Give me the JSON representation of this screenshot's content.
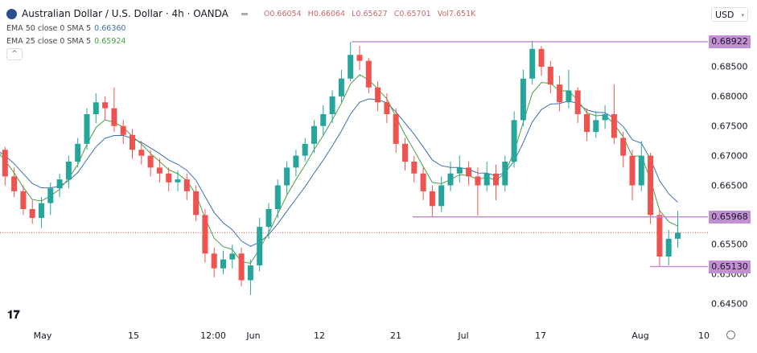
{
  "header": {
    "title": "Australian Dollar / U.S. Dollar · 4h · OANDA",
    "open": "O0.66054",
    "high": "H0.66064",
    "low": "L0.65627",
    "close": "C0.65701",
    "volume": "Vol7.651K"
  },
  "indicators": [
    {
      "label": "EMA 50 close 0 SMA 5",
      "value": "0.66360",
      "color": "#3a6fb0"
    },
    {
      "label": "EMA 25 close 0 SMA 5",
      "value": "0.65924",
      "color": "#46a046"
    }
  ],
  "currency": "USD",
  "colors": {
    "up": "#26a69a",
    "down": "#ef5350",
    "level": "#c38fd3",
    "ema50": "#3a6fb0",
    "ema25": "#46a046"
  },
  "chart_data": {
    "type": "candlestick",
    "title": "Australian Dollar / U.S. Dollar · 4h · OANDA",
    "ylim": [
      0.6425,
      0.6915
    ],
    "y_ticks": [
      "0.68500",
      "0.68000",
      "0.67500",
      "0.67000",
      "0.66500",
      "0.65500",
      "0.65000",
      "0.64500"
    ],
    "x_ticks": [
      "May",
      "15",
      "12:00",
      "Jun",
      "12",
      "21",
      "Jul",
      "17",
      "Aug",
      "10"
    ],
    "levels": [
      {
        "value": 0.68922,
        "label": "0.68922"
      },
      {
        "value": 0.65968,
        "label": "0.65968"
      },
      {
        "value": 0.6513,
        "label": "0.65130"
      }
    ],
    "last_price": 0.65701,
    "candles": [
      [
        "04-24",
        0.672,
        0.673,
        0.6695,
        0.671
      ],
      [
        "04-25",
        0.671,
        0.6715,
        0.665,
        0.6665
      ],
      [
        "04-26",
        0.6665,
        0.668,
        0.663,
        0.664
      ],
      [
        "04-27",
        0.664,
        0.665,
        0.66,
        0.661
      ],
      [
        "04-28",
        0.661,
        0.6625,
        0.6585,
        0.6595
      ],
      [
        "05-01",
        0.6595,
        0.663,
        0.6578,
        0.662
      ],
      [
        "05-02",
        0.662,
        0.6655,
        0.66,
        0.6645
      ],
      [
        "05-03",
        0.6645,
        0.667,
        0.663,
        0.666
      ],
      [
        "05-04",
        0.666,
        0.67,
        0.6645,
        0.669
      ],
      [
        "05-05",
        0.669,
        0.673,
        0.668,
        0.672
      ],
      [
        "05-08",
        0.672,
        0.678,
        0.671,
        0.677
      ],
      [
        "05-09",
        0.677,
        0.6805,
        0.6755,
        0.679
      ],
      [
        "05-10",
        0.679,
        0.68,
        0.676,
        0.678
      ],
      [
        "05-11",
        0.678,
        0.6815,
        0.674,
        0.675
      ],
      [
        "05-12",
        0.675,
        0.676,
        0.672,
        0.6735
      ],
      [
        "05-15",
        0.6735,
        0.6745,
        0.6695,
        0.671
      ],
      [
        "05-16",
        0.671,
        0.6725,
        0.6685,
        0.67
      ],
      [
        "05-17",
        0.67,
        0.671,
        0.6665,
        0.668
      ],
      [
        "05-18",
        0.668,
        0.6695,
        0.6655,
        0.667
      ],
      [
        "05-19",
        0.667,
        0.668,
        0.664,
        0.6655
      ],
      [
        "05-22",
        0.6655,
        0.6675,
        0.664,
        0.666
      ],
      [
        "05-23",
        0.666,
        0.667,
        0.6625,
        0.664
      ],
      [
        "05-24",
        0.664,
        0.665,
        0.659,
        0.66
      ],
      [
        "05-25",
        0.66,
        0.661,
        0.652,
        0.6535
      ],
      [
        "05-26",
        0.6535,
        0.6545,
        0.6495,
        0.651
      ],
      [
        "05-29",
        0.651,
        0.654,
        0.65,
        0.6525
      ],
      [
        "05-30",
        0.6525,
        0.655,
        0.651,
        0.6535
      ],
      [
        "05-31",
        0.6535,
        0.6545,
        0.648,
        0.649
      ],
      [
        "06-01",
        0.649,
        0.6525,
        0.6465,
        0.6515
      ],
      [
        "06-02",
        0.6515,
        0.6595,
        0.6505,
        0.658
      ],
      [
        "06-05",
        0.658,
        0.662,
        0.656,
        0.661
      ],
      [
        "06-06",
        0.661,
        0.666,
        0.6595,
        0.665
      ],
      [
        "06-07",
        0.665,
        0.669,
        0.6635,
        0.668
      ],
      [
        "06-08",
        0.668,
        0.671,
        0.6665,
        0.67
      ],
      [
        "06-09",
        0.67,
        0.673,
        0.669,
        0.672
      ],
      [
        "06-12",
        0.672,
        0.676,
        0.6705,
        0.675
      ],
      [
        "06-13",
        0.675,
        0.6785,
        0.6735,
        0.677
      ],
      [
        "06-14",
        0.677,
        0.681,
        0.6755,
        0.68
      ],
      [
        "06-15",
        0.68,
        0.6845,
        0.679,
        0.683
      ],
      [
        "06-16",
        0.683,
        0.6892,
        0.6825,
        0.687
      ],
      [
        "06-19",
        0.687,
        0.6885,
        0.6845,
        0.686
      ],
      [
        "06-20",
        0.686,
        0.6865,
        0.6805,
        0.6815
      ],
      [
        "06-21",
        0.6815,
        0.6825,
        0.6775,
        0.679
      ],
      [
        "06-22",
        0.679,
        0.6805,
        0.6755,
        0.677
      ],
      [
        "06-23",
        0.677,
        0.678,
        0.6705,
        0.672
      ],
      [
        "06-26",
        0.672,
        0.673,
        0.6675,
        0.669
      ],
      [
        "06-27",
        0.669,
        0.67,
        0.6655,
        0.667
      ],
      [
        "06-28",
        0.667,
        0.668,
        0.6625,
        0.664
      ],
      [
        "06-29",
        0.664,
        0.665,
        0.6597,
        0.6615
      ],
      [
        "06-30",
        0.6615,
        0.6665,
        0.6605,
        0.665
      ],
      [
        "07-03",
        0.665,
        0.669,
        0.664,
        0.667
      ],
      [
        "07-04",
        0.667,
        0.67,
        0.6655,
        0.668
      ],
      [
        "07-05",
        0.668,
        0.669,
        0.665,
        0.6665
      ],
      [
        "07-06",
        0.6665,
        0.668,
        0.6599,
        0.665
      ],
      [
        "07-07",
        0.665,
        0.669,
        0.664,
        0.667
      ],
      [
        "07-10",
        0.667,
        0.6685,
        0.6625,
        0.665
      ],
      [
        "07-11",
        0.665,
        0.67,
        0.664,
        0.669
      ],
      [
        "07-12",
        0.669,
        0.6775,
        0.668,
        0.676
      ],
      [
        "07-13",
        0.676,
        0.6845,
        0.675,
        0.683
      ],
      [
        "07-14",
        0.683,
        0.6894,
        0.682,
        0.688
      ],
      [
        "07-17",
        0.688,
        0.6885,
        0.6835,
        0.685
      ],
      [
        "07-18",
        0.685,
        0.686,
        0.6805,
        0.682
      ],
      [
        "07-19",
        0.682,
        0.6835,
        0.6775,
        0.679
      ],
      [
        "07-20",
        0.679,
        0.6845,
        0.678,
        0.681
      ],
      [
        "07-21",
        0.681,
        0.6815,
        0.6755,
        0.677
      ],
      [
        "07-24",
        0.677,
        0.678,
        0.6725,
        0.674
      ],
      [
        "07-25",
        0.674,
        0.6775,
        0.673,
        0.676
      ],
      [
        "07-26",
        0.676,
        0.6785,
        0.6745,
        0.677
      ],
      [
        "07-27",
        0.677,
        0.682,
        0.672,
        0.673
      ],
      [
        "07-28",
        0.673,
        0.674,
        0.668,
        0.67
      ],
      [
        "07-31",
        0.67,
        0.671,
        0.6625,
        0.665
      ],
      [
        "08-01",
        0.665,
        0.6725,
        0.664,
        0.67
      ],
      [
        "08-02",
        0.67,
        0.6705,
        0.6585,
        0.66
      ],
      [
        "08-03",
        0.66,
        0.661,
        0.6513,
        0.653
      ],
      [
        "08-04",
        0.653,
        0.6575,
        0.6515,
        0.656
      ],
      [
        "08-07",
        0.656,
        0.6607,
        0.6545,
        0.657
      ]
    ]
  }
}
